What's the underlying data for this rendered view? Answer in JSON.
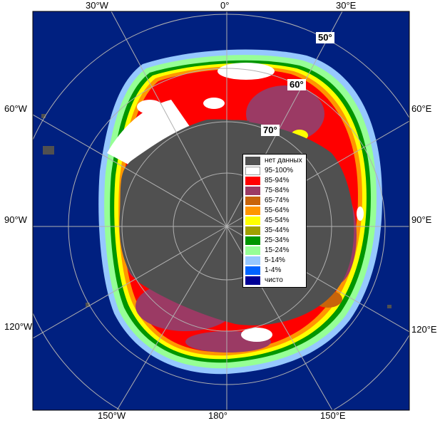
{
  "longitude_labels": {
    "top": [
      "30°W",
      "0°",
      "30°E"
    ],
    "left": [
      "60°W",
      "90°W",
      "120°W"
    ],
    "right": [
      "60°E",
      "90°E",
      "120°E"
    ],
    "bottom": [
      "150°W",
      "180°",
      "150°E"
    ]
  },
  "latitude_labels": [
    "50°",
    "60°",
    "70°"
  ],
  "legend": [
    {
      "label": "нет данных",
      "color": "#505050"
    },
    {
      "label": "95-100%",
      "color": "#ffffff"
    },
    {
      "label": "85-94%",
      "color": "#ff0000"
    },
    {
      "label": "75-84%",
      "color": "#9b3a64"
    },
    {
      "label": "65-74%",
      "color": "#c8640a"
    },
    {
      "label": "55-64%",
      "color": "#ff9600"
    },
    {
      "label": "45-54%",
      "color": "#ffff00"
    },
    {
      "label": "35-44%",
      "color": "#a0a000"
    },
    {
      "label": "25-34%",
      "color": "#009600"
    },
    {
      "label": "15-24%",
      "color": "#96ff96"
    },
    {
      "label": "5-14%",
      "color": "#96c8ff"
    },
    {
      "label": "1-4%",
      "color": "#0064ff"
    },
    {
      "label": "чисто",
      "color": "#000096"
    }
  ],
  "colors": {
    "ocean": "#002080",
    "land": "#505050",
    "frame": "#ffffff",
    "grid": "#b0b0b0"
  }
}
